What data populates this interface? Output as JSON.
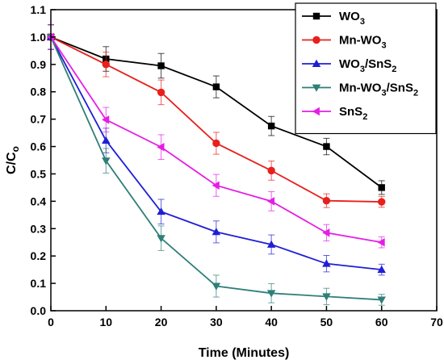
{
  "chart_data": {
    "type": "line",
    "title": "",
    "xlabel": "Time (Minutes)",
    "ylabel_main": "C/C",
    "ylabel_sub": "o",
    "xlim": [
      0,
      70
    ],
    "ylim": [
      0.0,
      1.1
    ],
    "xticks": [
      0,
      10,
      20,
      30,
      40,
      50,
      60,
      70
    ],
    "yticks": [
      0.0,
      0.1,
      0.2,
      0.3,
      0.4,
      0.5,
      0.6,
      0.7,
      0.8,
      0.9,
      1.0,
      1.1
    ],
    "grid": false,
    "legend_position": "top-right",
    "x": [
      0,
      10,
      20,
      30,
      40,
      50,
      60
    ],
    "series": [
      {
        "name": "WO3",
        "name_parts": [
          {
            "t": "WO"
          },
          {
            "t": "3",
            "sub": true
          }
        ],
        "color": "#000000",
        "marker": "square",
        "values": [
          1.0,
          0.92,
          0.895,
          0.818,
          0.675,
          0.6,
          0.45
        ],
        "errors": [
          0.045,
          0.045,
          0.045,
          0.04,
          0.035,
          0.03,
          0.025
        ]
      },
      {
        "name": "Mn-WO3",
        "name_parts": [
          {
            "t": "Mn-WO"
          },
          {
            "t": "3",
            "sub": true
          }
        ],
        "color": "#e8201c",
        "marker": "circle",
        "values": [
          1.0,
          0.9,
          0.798,
          0.612,
          0.512,
          0.402,
          0.398
        ],
        "errors": [
          0.045,
          0.045,
          0.045,
          0.04,
          0.035,
          0.025,
          0.02
        ]
      },
      {
        "name": "WO3/SnS2",
        "name_parts": [
          {
            "t": "WO"
          },
          {
            "t": "3",
            "sub": true
          },
          {
            "t": "/SnS"
          },
          {
            "t": "2",
            "sub": true
          }
        ],
        "color": "#1f1fd6",
        "marker": "triangle-up",
        "values": [
          1.0,
          0.622,
          0.362,
          0.288,
          0.242,
          0.172,
          0.15
        ],
        "errors": [
          0.045,
          0.045,
          0.045,
          0.04,
          0.035,
          0.03,
          0.02
        ]
      },
      {
        "name": "Mn-WO3/SnS2",
        "name_parts": [
          {
            "t": "Mn-WO"
          },
          {
            "t": "3",
            "sub": true
          },
          {
            "t": "/SnS"
          },
          {
            "t": "2",
            "sub": true
          }
        ],
        "color": "#2e7f78",
        "marker": "triangle-down",
        "values": [
          1.0,
          0.548,
          0.265,
          0.09,
          0.064,
          0.052,
          0.04
        ],
        "errors": [
          0.045,
          0.045,
          0.045,
          0.04,
          0.035,
          0.03,
          0.02
        ]
      },
      {
        "name": "SnS2",
        "name_parts": [
          {
            "t": "SnS"
          },
          {
            "t": "2",
            "sub": true
          }
        ],
        "color": "#e51ee5",
        "marker": "triangle-left",
        "values": [
          1.0,
          0.698,
          0.598,
          0.458,
          0.4,
          0.285,
          0.25
        ],
        "errors": [
          0.045,
          0.045,
          0.045,
          0.04,
          0.035,
          0.03,
          0.02
        ]
      }
    ]
  }
}
